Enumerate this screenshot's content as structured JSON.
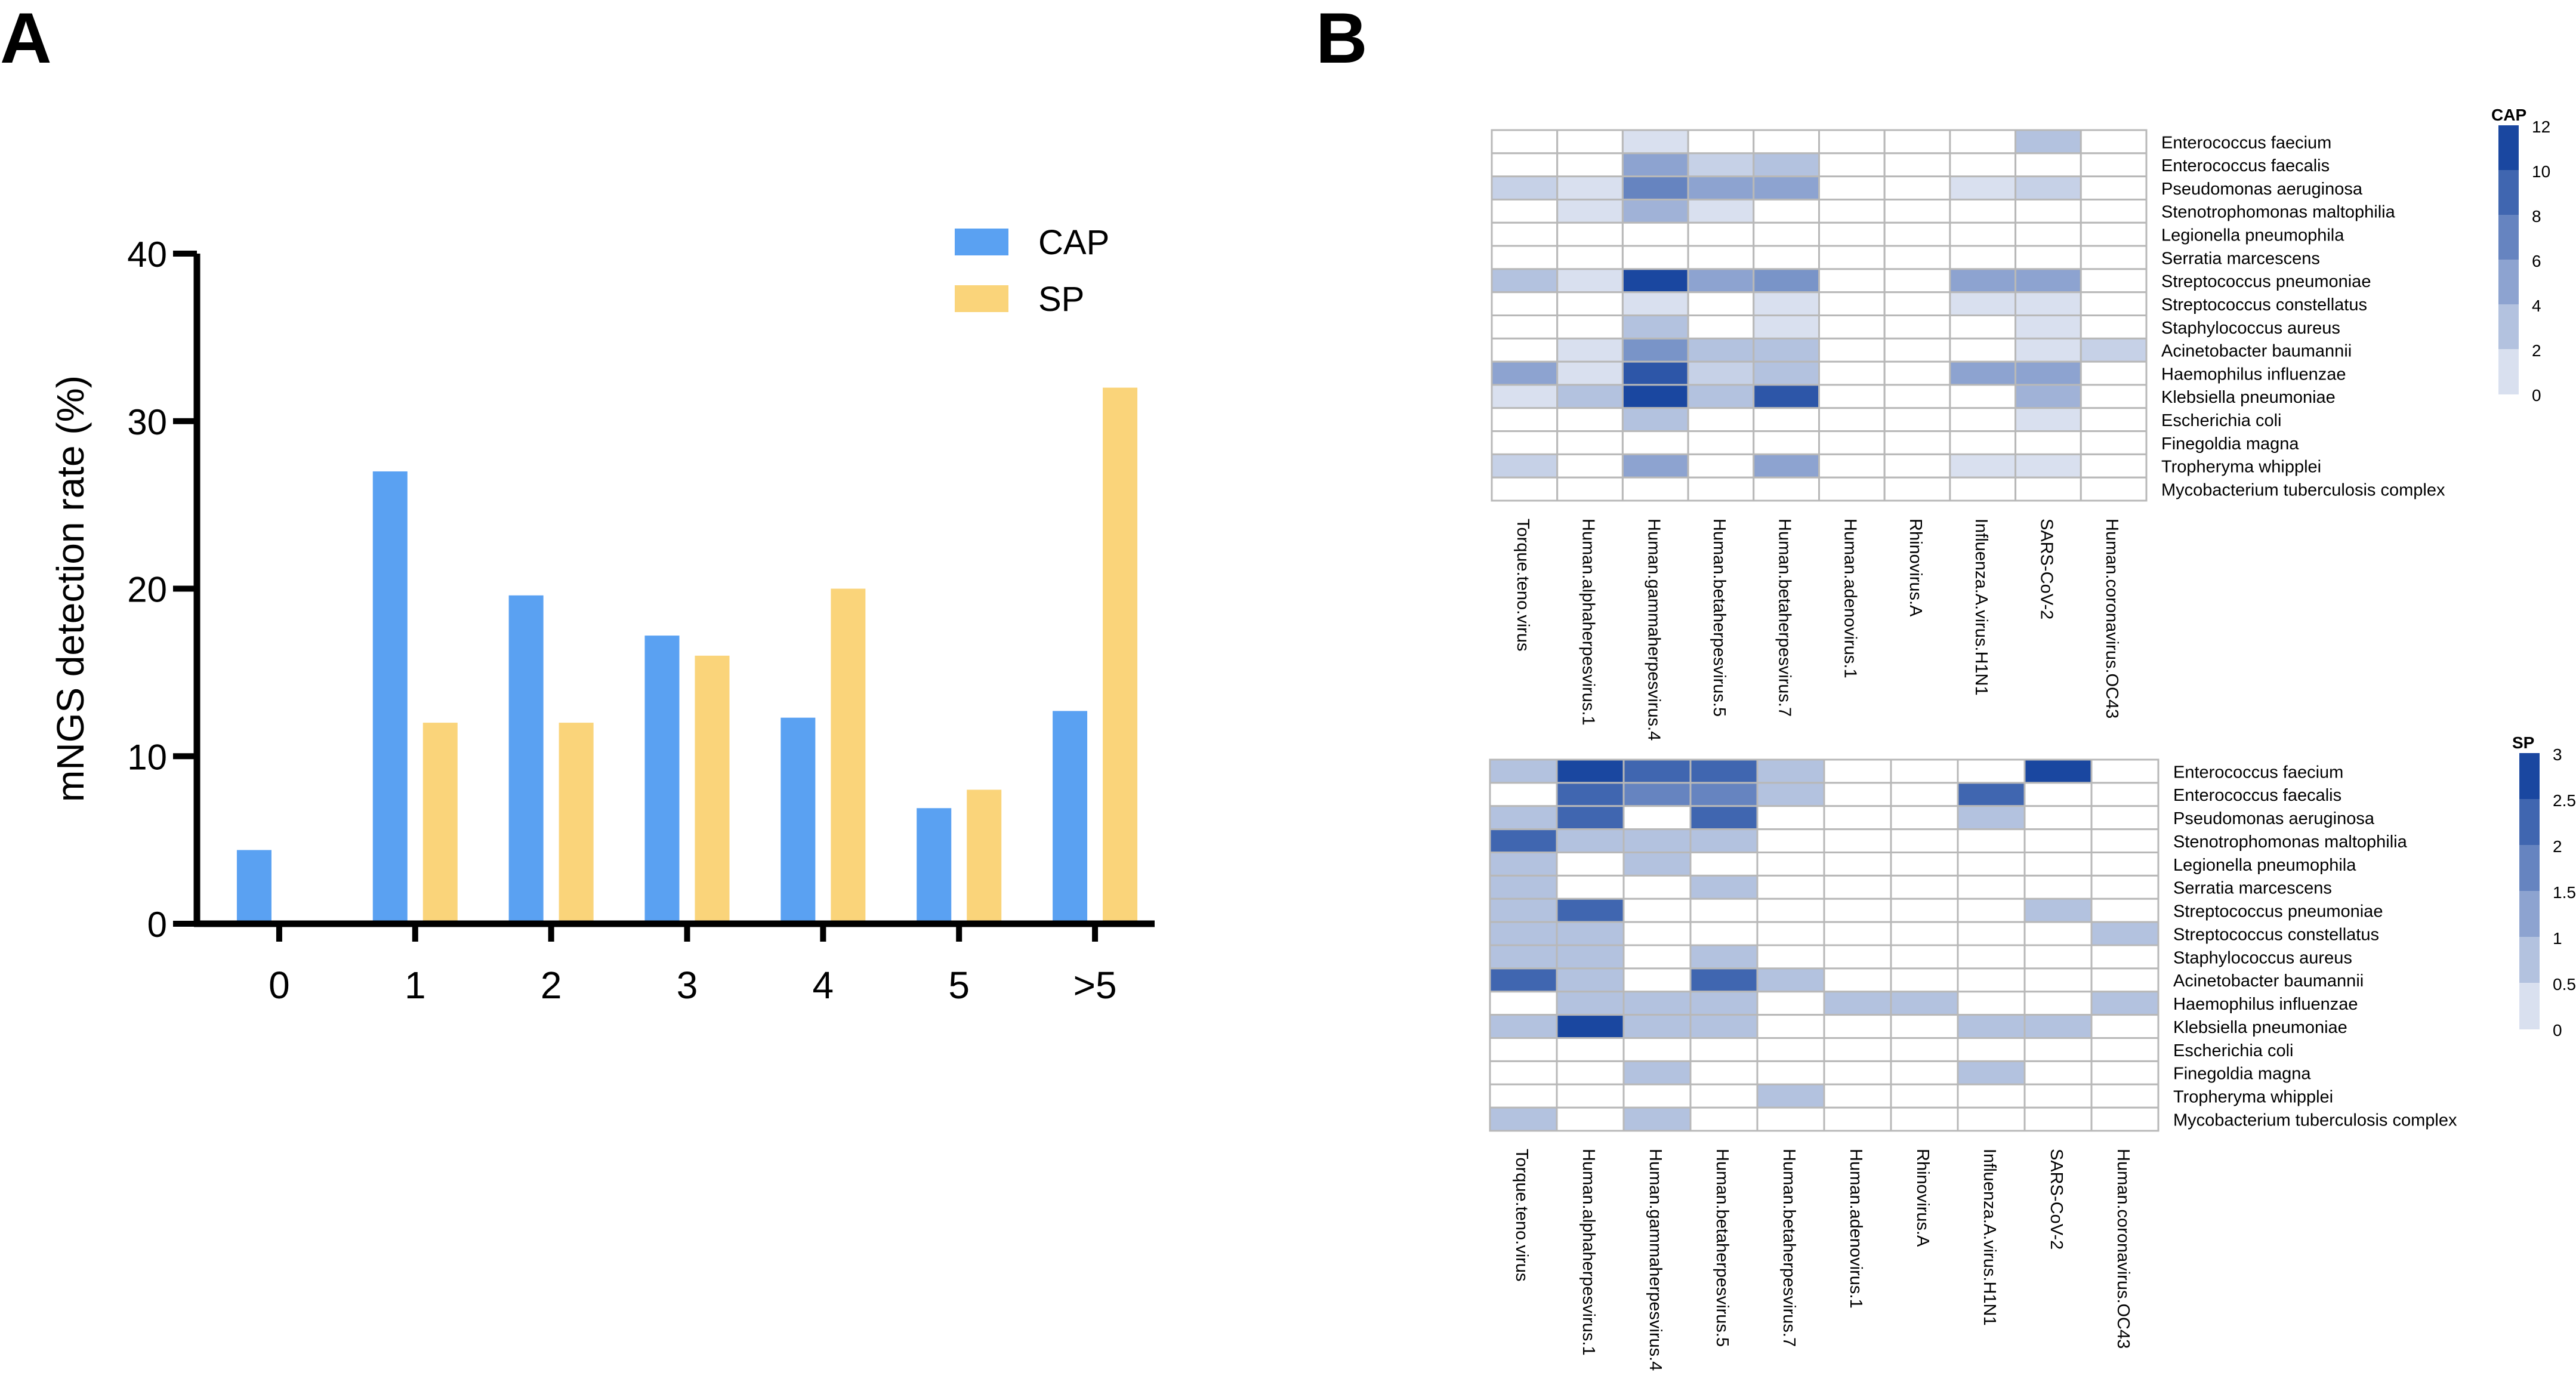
{
  "panels": {
    "a_label": "A",
    "b_label": "B"
  },
  "colors": {
    "cap": "#5aa1f2",
    "sp": "#fad47a",
    "heat_low": "#ffffff",
    "heat_high": "#1a47a0",
    "grid": "#b8b8b8",
    "axis": "#000000"
  },
  "chart_data": [
    {
      "type": "bar",
      "title": "",
      "xlabel": "",
      "ylabel": "mNGS detection rate (%)",
      "categories": [
        "0",
        "1",
        "2",
        "3",
        "4",
        "5",
        ">5"
      ],
      "series": [
        {
          "name": "CAP",
          "values": [
            4.4,
            27,
            19.6,
            17.2,
            12.3,
            6.9,
            12.7
          ]
        },
        {
          "name": "SP",
          "values": [
            0,
            12,
            12,
            16,
            20,
            8,
            32
          ]
        }
      ],
      "ylim": [
        0,
        40
      ],
      "yticks": [
        0,
        10,
        20,
        30,
        40
      ],
      "legend": "top-right"
    },
    {
      "type": "heatmap",
      "title": "CAP",
      "columns": [
        "Torque.teno.virus",
        "Human.alphaherpesvirus.1",
        "Human.gammaherpesvirus.4",
        "Human.betaherpesvirus.5",
        "Human.betaherpesvirus.7",
        "Human.adenovirus.1",
        "Rhinovirus.A",
        "Influenza.A.virus.H1N1",
        "SARS-CoV-2",
        "Human.coronavirus.OC43"
      ],
      "rows": [
        "Enterococcus faecium",
        "Enterococcus faecalis",
        "Pseudomonas aeruginosa",
        "Stenotrophomonas maltophilia",
        "Legionella pneumophila",
        "Serratia marcescens",
        "Streptococcus pneumoniae",
        "Streptococcus constellatus",
        "Staphylococcus aureus",
        "Acinetobacter baumannii",
        "Haemophilus influenzae",
        "Klebsiella pneumoniae",
        "Escherichia coli",
        "Finegoldia magna",
        "Tropheryma whipplei",
        "Mycobacterium tuberculosis complex"
      ],
      "values": [
        [
          0,
          0,
          2,
          0,
          0,
          0,
          0,
          0,
          4,
          0
        ],
        [
          0,
          0,
          6,
          3,
          4,
          0,
          0,
          0,
          0,
          0
        ],
        [
          3,
          2,
          8,
          6,
          6,
          0,
          0,
          2,
          3,
          0
        ],
        [
          0,
          2,
          5,
          2,
          0,
          0,
          0,
          0,
          0,
          0
        ],
        [
          0,
          0,
          0,
          0,
          0,
          0,
          0,
          0,
          0,
          0
        ],
        [
          0,
          0,
          0,
          0,
          0,
          0,
          0,
          0,
          0,
          0
        ],
        [
          4,
          2,
          12,
          6,
          7,
          0,
          0,
          6,
          6,
          0
        ],
        [
          0,
          0,
          2,
          0,
          2,
          0,
          0,
          2,
          2,
          0
        ],
        [
          0,
          0,
          4,
          0,
          2,
          0,
          0,
          0,
          2,
          0
        ],
        [
          0,
          2,
          7,
          4,
          4,
          0,
          0,
          0,
          2,
          3
        ],
        [
          6,
          2,
          11,
          3,
          4,
          0,
          0,
          6,
          6,
          0
        ],
        [
          2,
          4,
          12,
          4,
          11,
          0,
          0,
          0,
          5,
          0
        ],
        [
          0,
          0,
          4,
          0,
          0,
          0,
          0,
          0,
          2,
          0
        ],
        [
          0,
          0,
          0,
          0,
          0,
          0,
          0,
          0,
          0,
          0
        ],
        [
          3,
          0,
          6,
          0,
          6,
          0,
          0,
          2,
          2,
          0
        ],
        [
          0,
          0,
          0,
          0,
          0,
          0,
          0,
          0,
          0,
          0
        ]
      ],
      "scale": {
        "min": 0,
        "max": 12,
        "ticks": [
          "12",
          "10",
          "8",
          "6",
          "4",
          "2",
          "0"
        ]
      }
    },
    {
      "type": "heatmap",
      "title": "SP",
      "columns": [
        "Torque.teno.virus",
        "Human.alphaherpesvirus.1",
        "Human.gammaherpesvirus.4",
        "Human.betaherpesvirus.5",
        "Human.betaherpesvirus.7",
        "Human.adenovirus.1",
        "Rhinovirus.A",
        "Influenza.A.virus.H1N1",
        "SARS-CoV-2",
        "Human.coronavirus.OC43"
      ],
      "rows": [
        "Enterococcus faecium",
        "Enterococcus faecalis",
        "Pseudomonas aeruginosa",
        "Stenotrophomonas maltophilia",
        "Legionella pneumophila",
        "Serratia marcescens",
        "Streptococcus pneumoniae",
        "Streptococcus constellatus",
        "Staphylococcus aureus",
        "Acinetobacter baumannii",
        "Haemophilus influenzae",
        "Klebsiella pneumoniae",
        "Escherichia coli",
        "Finegoldia magna",
        "Tropheryma whipplei",
        "Mycobacterium tuberculosis complex"
      ],
      "values": [
        [
          1,
          3,
          2.5,
          2.5,
          1,
          0,
          0,
          0,
          3,
          0
        ],
        [
          0,
          2.5,
          2,
          2,
          1,
          0,
          0,
          2.5,
          0,
          0
        ],
        [
          1,
          2.5,
          0,
          2.5,
          0,
          0,
          0,
          1,
          0,
          0
        ],
        [
          2.5,
          1,
          1,
          1,
          0,
          0,
          0,
          0,
          0,
          0
        ],
        [
          1,
          0,
          1,
          0,
          0,
          0,
          0,
          0,
          0,
          0
        ],
        [
          1,
          0,
          0,
          1,
          0,
          0,
          0,
          0,
          0,
          0
        ],
        [
          1,
          2.5,
          0,
          0,
          0,
          0,
          0,
          0,
          1,
          0
        ],
        [
          1,
          1,
          0,
          0,
          0,
          0,
          0,
          0,
          0,
          1
        ],
        [
          1,
          1,
          0,
          1,
          0,
          0,
          0,
          0,
          0,
          0
        ],
        [
          2.5,
          1,
          0,
          2.5,
          1,
          0,
          0,
          0,
          0,
          0
        ],
        [
          0,
          1,
          1,
          1,
          0,
          1,
          1,
          0,
          0,
          1
        ],
        [
          1,
          3,
          1,
          1,
          0,
          0,
          0,
          1,
          1,
          0
        ],
        [
          0,
          0,
          0,
          0,
          0,
          0,
          0,
          0,
          0,
          0
        ],
        [
          0,
          0,
          1,
          0,
          0,
          0,
          0,
          1,
          0,
          0
        ],
        [
          0,
          0,
          0,
          0,
          1,
          0,
          0,
          0,
          0,
          0
        ],
        [
          1,
          0,
          1,
          0,
          0,
          0,
          0,
          0,
          0,
          0
        ]
      ],
      "scale": {
        "min": 0,
        "max": 3,
        "ticks": [
          "3",
          "2.5",
          "2",
          "1.5",
          "1",
          "0.5",
          "0"
        ]
      }
    }
  ]
}
